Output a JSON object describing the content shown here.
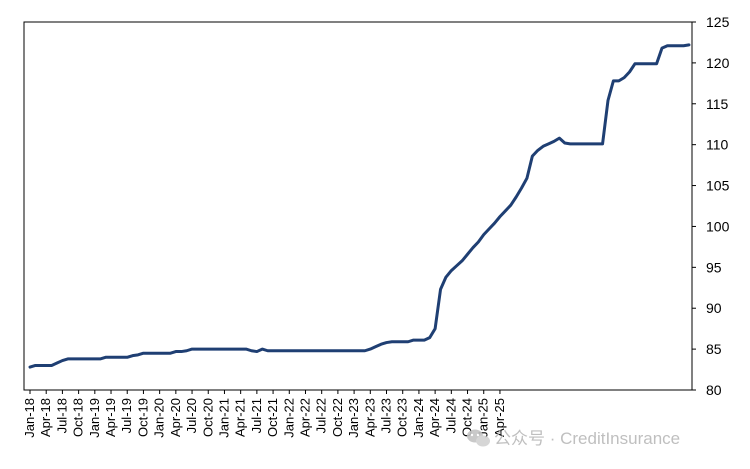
{
  "chart_data": {
    "type": "line",
    "title": "",
    "xlabel": "",
    "ylabel": "",
    "y_axis_side": "right",
    "ylim": [
      80,
      125
    ],
    "yticks": [
      80,
      85,
      90,
      95,
      100,
      105,
      110,
      115,
      120,
      125
    ],
    "grid": false,
    "legend": "none",
    "line_color": "#1f3f73",
    "x_start": "2018-01",
    "x_tick_labels": [
      "Jan-18",
      "Apr-18",
      "Jul-18",
      "Oct-18",
      "Jan-19",
      "Apr-19",
      "Jul-19",
      "Oct-19",
      "Jan-20",
      "Apr-20",
      "Jul-20",
      "Oct-20",
      "Jan-21",
      "Apr-21",
      "Jul-21",
      "Oct-21",
      "Jan-22",
      "Apr-22",
      "Jul-22",
      "Oct-22",
      "Jan-23",
      "Apr-23",
      "Jul-23",
      "Oct-23",
      "Jan-24",
      "Apr-24",
      "Jul-24",
      "Oct-24",
      "Jan-25",
      "Apr-25"
    ],
    "series": [
      {
        "values": [
          82.8,
          83.0,
          83.0,
          83.0,
          83.0,
          83.3,
          83.6,
          83.8,
          83.8,
          83.8,
          83.8,
          83.8,
          83.8,
          83.8,
          84.0,
          84.0,
          84.0,
          84.0,
          84.0,
          84.2,
          84.3,
          84.5,
          84.5,
          84.5,
          84.5,
          84.5,
          84.5,
          84.7,
          84.7,
          84.8,
          85.0,
          85.0,
          85.0,
          85.0,
          85.0,
          85.0,
          85.0,
          85.0,
          85.0,
          85.0,
          85.0,
          84.8,
          84.7,
          85.0,
          84.8,
          84.8,
          84.8,
          84.8,
          84.8,
          84.8,
          84.8,
          84.8,
          84.8,
          84.8,
          84.8,
          84.8,
          84.8,
          84.8,
          84.8,
          84.8,
          84.8,
          84.8,
          84.8,
          85.0,
          85.3,
          85.6,
          85.8,
          85.9,
          85.9,
          85.9,
          85.9,
          86.1,
          86.1,
          86.1,
          86.4,
          87.5,
          92.3,
          93.8,
          94.6,
          95.2,
          95.8,
          96.6,
          97.4,
          98.1,
          99.0,
          99.7,
          100.4,
          101.2,
          101.9,
          102.6,
          103.6,
          104.7,
          105.9,
          108.6,
          109.3,
          109.8,
          110.1,
          110.4,
          110.8,
          110.2,
          110.1,
          110.1,
          110.1,
          110.1,
          110.1,
          110.1,
          110.1,
          115.4,
          117.8,
          117.8,
          118.2,
          118.9,
          119.9,
          119.9,
          119.9,
          119.9,
          119.9,
          121.8,
          122.1,
          122.1,
          122.1,
          122.1,
          122.2
        ]
      }
    ]
  },
  "watermark": {
    "text": "公众号 · CreditInsurance",
    "icon": "wechat-icon"
  }
}
